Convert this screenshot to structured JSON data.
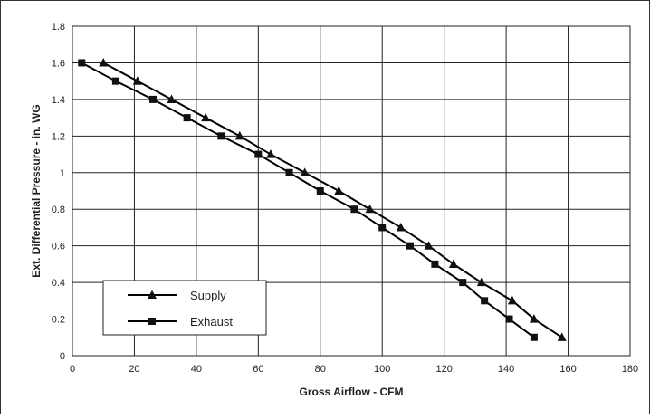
{
  "chart_data": {
    "type": "line",
    "xlabel": "Gross Airflow - CFM",
    "ylabel": "Ext. Differential Pressure - in. WG",
    "xlim": [
      0,
      180
    ],
    "ylim": [
      0,
      1.8
    ],
    "x_ticks": [
      "0",
      "20",
      "40",
      "60",
      "80",
      "100",
      "120",
      "140",
      "160",
      "180"
    ],
    "y_ticks": [
      "0",
      "0.2",
      "0.4",
      "0.6",
      "0.8",
      "1",
      "1.2",
      "1.4",
      "1.6",
      "1.8"
    ],
    "grid": true,
    "legend_position": "bottom-left",
    "series": [
      {
        "name": "Supply",
        "marker": "triangle",
        "color": "#000000",
        "x": [
          10,
          21,
          32,
          43,
          54,
          64,
          75,
          86,
          96,
          106,
          115,
          123,
          132,
          142,
          149,
          158
        ],
        "y": [
          1.6,
          1.5,
          1.4,
          1.3,
          1.2,
          1.1,
          1.0,
          0.9,
          0.8,
          0.7,
          0.6,
          0.5,
          0.4,
          0.3,
          0.2,
          0.1
        ]
      },
      {
        "name": "Exhaust",
        "marker": "square",
        "color": "#000000",
        "x": [
          3,
          14,
          26,
          37,
          48,
          60,
          70,
          80,
          91,
          100,
          109,
          117,
          126,
          133,
          141,
          149
        ],
        "y": [
          1.6,
          1.5,
          1.4,
          1.3,
          1.2,
          1.1,
          1.0,
          0.9,
          0.8,
          0.7,
          0.6,
          0.5,
          0.4,
          0.3,
          0.2,
          0.1
        ]
      }
    ]
  }
}
